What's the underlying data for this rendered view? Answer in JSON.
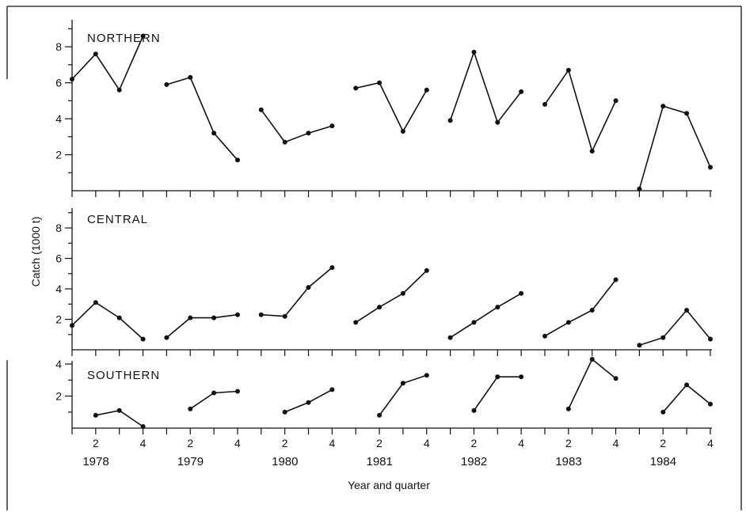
{
  "chart_data": {
    "type": "line",
    "ylabel": "Catch (1000 t)",
    "xlabel": "Year and quarter",
    "years": [
      "1978",
      "1979",
      "1980",
      "1981",
      "1982",
      "1983",
      "1984"
    ],
    "quarter_tick_labels": [
      "2",
      "4"
    ],
    "panels": [
      {
        "title": "NORTHERN",
        "ylim": [
          0,
          9.5
        ],
        "yticks": [
          2,
          4,
          6,
          8
        ],
        "yminor": [
          1,
          3,
          5,
          7,
          9
        ],
        "series": [
          [
            6.2,
            7.6,
            5.6,
            8.6
          ],
          [
            5.9,
            6.3,
            3.2,
            1.7
          ],
          [
            4.5,
            2.7,
            3.2,
            3.6
          ],
          [
            5.7,
            6.0,
            3.3,
            5.6
          ],
          [
            3.9,
            7.7,
            3.8,
            5.5
          ],
          [
            4.8,
            6.7,
            2.2,
            5.0
          ],
          [
            0.1,
            4.7,
            4.3,
            1.3
          ]
        ]
      },
      {
        "title": "CENTRAL",
        "ylim": [
          0,
          9.3
        ],
        "yticks": [
          2,
          4,
          6,
          8
        ],
        "yminor": [
          1,
          3,
          5,
          7,
          9
        ],
        "series": [
          [
            1.6,
            3.1,
            2.1,
            0.7
          ],
          [
            0.8,
            2.1,
            2.1,
            2.3
          ],
          [
            2.3,
            2.2,
            4.1,
            5.4
          ],
          [
            1.8,
            2.8,
            3.7,
            5.2
          ],
          [
            0.8,
            1.8,
            2.8,
            3.7
          ],
          [
            0.9,
            1.8,
            2.6,
            4.6
          ],
          [
            0.3,
            0.8,
            2.6,
            0.7
          ]
        ]
      },
      {
        "title": "SOUTHERN",
        "ylim": [
          0,
          4.2
        ],
        "yticks": [
          2,
          4
        ],
        "yminor": [
          1,
          3
        ],
        "series": [
          [
            null,
            0.8,
            1.1,
            0.1
          ],
          [
            null,
            1.2,
            2.2,
            2.3
          ],
          [
            null,
            1.0,
            1.6,
            2.4
          ],
          [
            null,
            0.8,
            2.8,
            3.3
          ],
          [
            null,
            1.1,
            3.2,
            3.2
          ],
          [
            null,
            1.2,
            4.3,
            3.1
          ],
          [
            null,
            1.0,
            2.7,
            1.5
          ]
        ]
      }
    ]
  }
}
